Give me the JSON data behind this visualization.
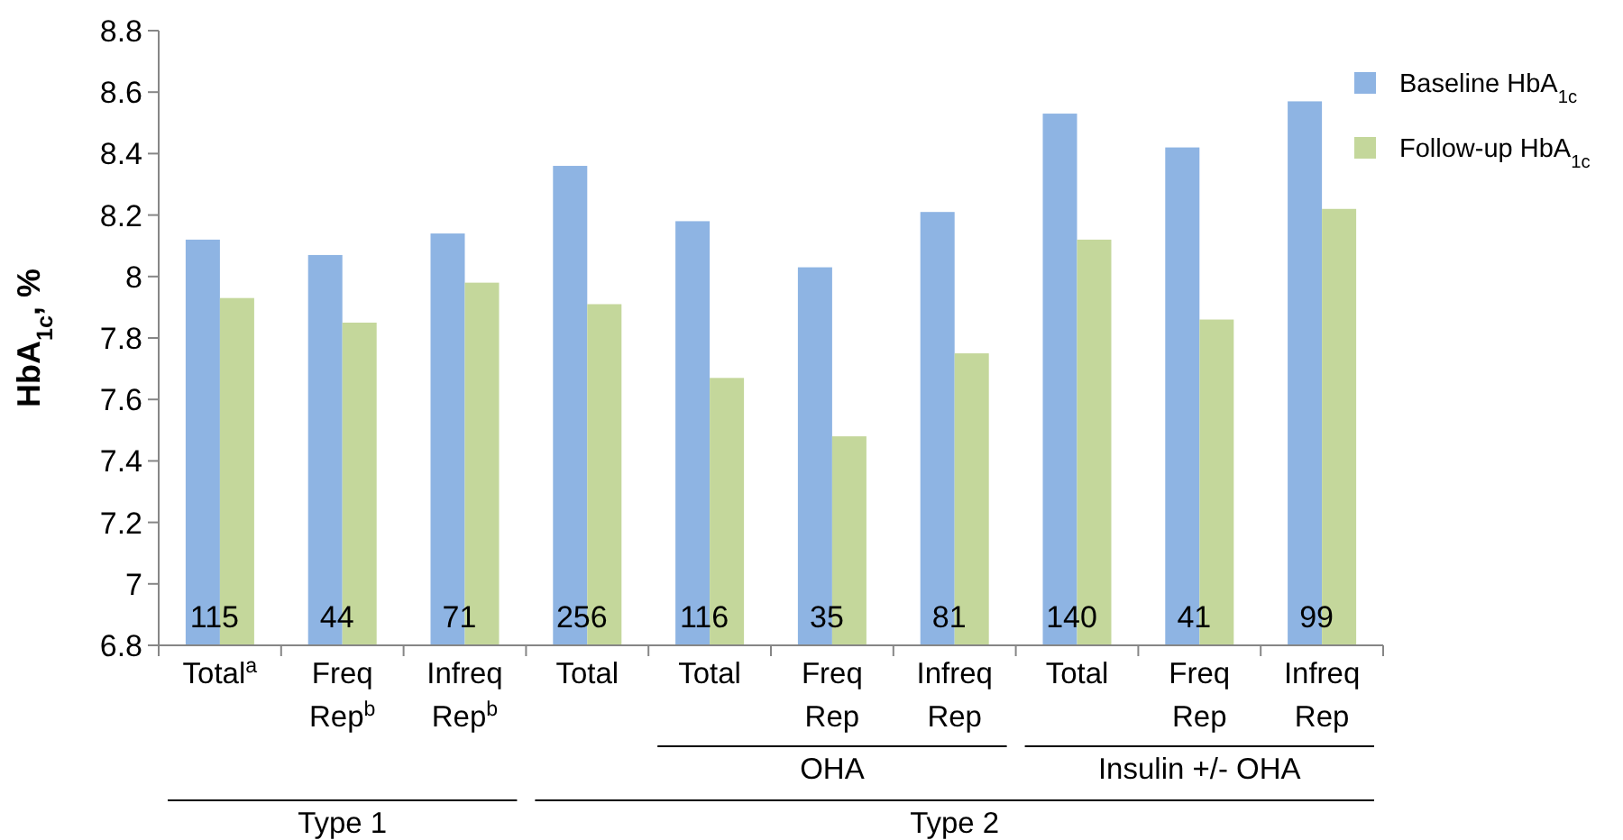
{
  "chart_data": {
    "type": "bar",
    "ylabel": "HbA$_{1c}$, %",
    "categories": [
      "Total$^{a}$",
      "Freq Rep$^{b}$",
      "Infreq Rep$^{b}$",
      "Total",
      "Total",
      "Freq Rep",
      "Infreq Rep",
      "Total",
      "Freq Rep",
      "Infreq Rep"
    ],
    "series": [
      {
        "name": "Baseline HbA$_{1c}$",
        "color": "#8eb4e3",
        "values": [
          8.12,
          8.07,
          8.14,
          8.36,
          8.18,
          8.03,
          8.21,
          8.53,
          8.42,
          8.57
        ]
      },
      {
        "name": "Follow-up HbA$_{1c}$",
        "color": "#c4d79b",
        "values": [
          7.93,
          7.85,
          7.98,
          7.91,
          7.67,
          7.48,
          7.75,
          8.12,
          7.86,
          8.22
        ]
      }
    ],
    "ylim": [
      6.8,
      8.8
    ],
    "yticks": [
      6.8,
      7,
      7.2,
      7.4,
      7.6,
      7.8,
      8,
      8.2,
      8.4,
      8.6,
      8.8
    ],
    "grid": false,
    "legend": "top right",
    "annotations": [
      "115",
      "44",
      "71",
      "256",
      "116",
      "35",
      "81",
      "140",
      "41",
      "99",
      "OHA",
      "Insulin +/- OHA",
      "Type 1",
      "Type 2"
    ]
  }
}
